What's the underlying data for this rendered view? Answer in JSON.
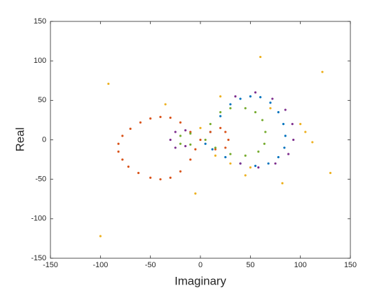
{
  "chart_data": {
    "type": "scatter",
    "xlabel": "Imaginary",
    "ylabel": "Real",
    "xlim": [
      -150,
      150
    ],
    "ylim": [
      -150,
      150
    ],
    "xticks": [
      -150,
      -100,
      -50,
      0,
      50,
      100,
      150
    ],
    "yticks": [
      -150,
      -100,
      -50,
      0,
      50,
      100,
      150
    ],
    "series": [
      {
        "color": "#0072BD",
        "x": [
          10,
          20,
          30,
          40,
          50,
          60,
          70,
          78,
          83,
          85,
          84,
          78,
          68,
          55,
          40,
          25,
          12,
          5
        ],
        "y": [
          10,
          30,
          45,
          52,
          55,
          54,
          47,
          35,
          20,
          5,
          -10,
          -22,
          -30,
          -33,
          -30,
          -22,
          -12,
          -5
        ]
      },
      {
        "color": "#D95319",
        "x": [
          0,
          -10,
          -20,
          -30,
          -40,
          -50,
          -60,
          -70,
          -78,
          -82,
          -82,
          -78,
          -72,
          -62,
          -50,
          -40,
          -30,
          -20,
          -10,
          -5,
          10,
          20,
          25,
          28,
          25,
          15
        ],
        "y": [
          0,
          10,
          22,
          28,
          29,
          27,
          22,
          14,
          5,
          -5,
          -15,
          -25,
          -34,
          -42,
          -48,
          -50,
          -48,
          -40,
          -25,
          -12,
          10,
          15,
          10,
          0,
          -10,
          -12
        ]
      },
      {
        "color": "#EDB120",
        "x": [
          -92,
          -100,
          60,
          122,
          130,
          112,
          82,
          -5,
          45,
          100,
          20,
          -35,
          50,
          30,
          70,
          0,
          15,
          105
        ],
        "y": [
          71,
          -122,
          105,
          86,
          -42,
          -3,
          -55,
          -68,
          -45,
          20,
          55,
          45,
          -35,
          -30,
          40,
          15,
          -20,
          10
        ]
      },
      {
        "color": "#7E2F8E",
        "x": [
          35,
          55,
          72,
          85,
          92,
          93,
          88,
          75,
          58,
          40,
          -15,
          -25,
          -30,
          -25,
          -15
        ],
        "y": [
          55,
          60,
          52,
          38,
          20,
          0,
          -18,
          -30,
          -35,
          -30,
          12,
          10,
          0,
          -10,
          -8
        ]
      },
      {
        "color": "#77AC30",
        "x": [
          10,
          20,
          30,
          45,
          55,
          62,
          65,
          64,
          58,
          45,
          30,
          15,
          5,
          -10,
          -20,
          -20,
          -10
        ],
        "y": [
          20,
          35,
          40,
          40,
          35,
          25,
          10,
          -5,
          -15,
          -20,
          -18,
          -10,
          0,
          8,
          5,
          -5,
          -6
        ]
      }
    ]
  }
}
